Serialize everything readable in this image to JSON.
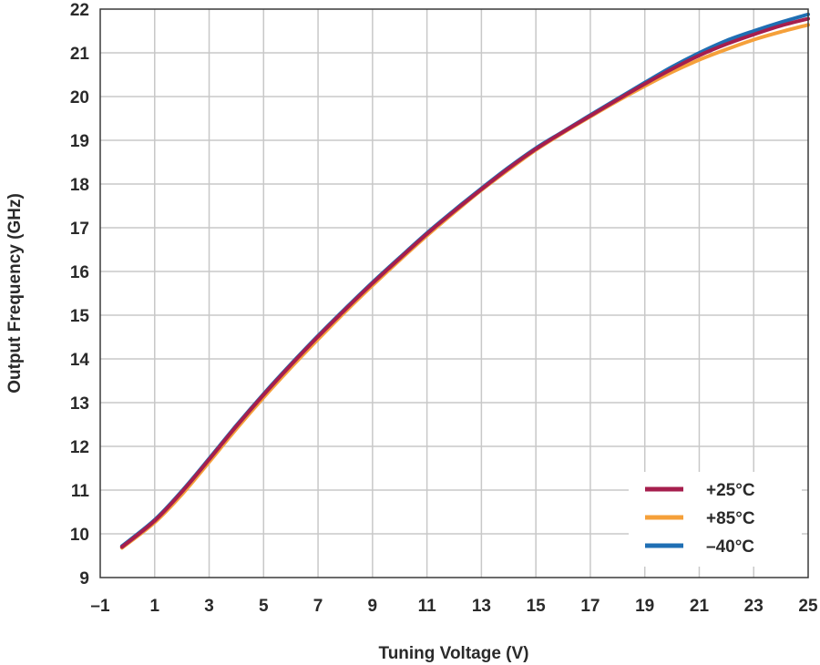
{
  "chart_data": {
    "type": "line",
    "title": "",
    "xlabel": "Tuning Voltage (V)",
    "ylabel": "Output Frequency (GHz)",
    "xlim": [
      -1,
      25
    ],
    "ylim": [
      9,
      22
    ],
    "x_ticks": [
      "–1",
      "1",
      "3",
      "5",
      "7",
      "9",
      "11",
      "13",
      "15",
      "17",
      "19",
      "21",
      "23",
      "25"
    ],
    "y_ticks": [
      "9",
      "10",
      "11",
      "12",
      "13",
      "14",
      "15",
      "16",
      "17",
      "18",
      "19",
      "20",
      "21",
      "22"
    ],
    "grid": true,
    "legend_position": "bottom-right",
    "x": [
      -0.2,
      1,
      2,
      3,
      4,
      5,
      6,
      7,
      8,
      9,
      10,
      11,
      12,
      13,
      14,
      15,
      16,
      17,
      18,
      19,
      20,
      21,
      22,
      23,
      24,
      25
    ],
    "series": [
      {
        "name": "–40°C",
        "color": "#1f6fb4",
        "values": [
          9.72,
          10.32,
          10.98,
          11.72,
          12.48,
          13.2,
          13.88,
          14.53,
          15.15,
          15.75,
          16.32,
          16.88,
          17.4,
          17.9,
          18.38,
          18.82,
          19.2,
          19.58,
          19.95,
          20.32,
          20.68,
          21.0,
          21.28,
          21.5,
          21.7,
          21.88
        ]
      },
      {
        "name": "+85°C",
        "color": "#f5a03a",
        "values": [
          9.68,
          10.26,
          10.9,
          11.64,
          12.4,
          13.12,
          13.8,
          14.45,
          15.08,
          15.68,
          16.26,
          16.82,
          17.35,
          17.86,
          18.33,
          18.78,
          19.17,
          19.54,
          19.9,
          20.24,
          20.56,
          20.84,
          21.08,
          21.3,
          21.48,
          21.64
        ]
      },
      {
        "name": "+25°C",
        "color": "#a61e4d",
        "values": [
          9.7,
          10.3,
          10.96,
          11.7,
          12.46,
          13.18,
          13.86,
          14.51,
          15.13,
          15.73,
          16.3,
          16.86,
          17.38,
          17.88,
          18.36,
          18.8,
          19.19,
          19.56,
          19.93,
          20.29,
          20.63,
          20.94,
          21.2,
          21.42,
          21.62,
          21.78
        ]
      }
    ],
    "legend": [
      {
        "label": "+25°C",
        "color": "#a61e4d"
      },
      {
        "label": "+85°C",
        "color": "#f5a03a"
      },
      {
        "label": "–40°C",
        "color": "#1f6fb4"
      }
    ]
  }
}
